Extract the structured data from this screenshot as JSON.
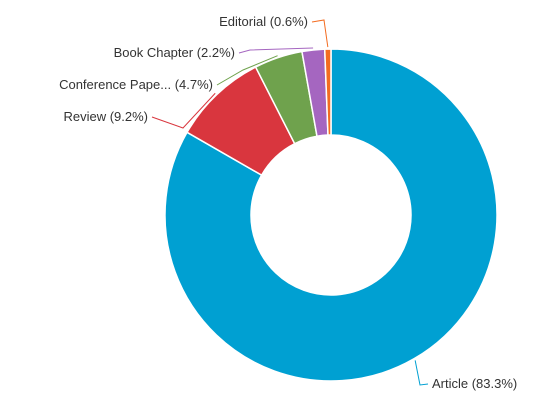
{
  "chart_data": {
    "type": "pie",
    "variant": "donut",
    "legend": "none",
    "slices": [
      {
        "label": "Article (83.3%)",
        "category": "Article",
        "value": 83.3,
        "color": "#00A0D2"
      },
      {
        "label": "Review (9.2%)",
        "category": "Review",
        "value": 9.2,
        "color": "#D9363E"
      },
      {
        "label": "Conference Pape... (4.7%)",
        "category": "Conference Pape...",
        "value": 4.7,
        "color": "#6FA24D"
      },
      {
        "label": "Book Chapter (2.2%)",
        "category": "Book Chapter",
        "value": 2.2,
        "color": "#A566C0"
      },
      {
        "label": "Editorial (0.6%)",
        "category": "Editorial",
        "value": 0.6,
        "color": "#F36C21"
      }
    ]
  }
}
